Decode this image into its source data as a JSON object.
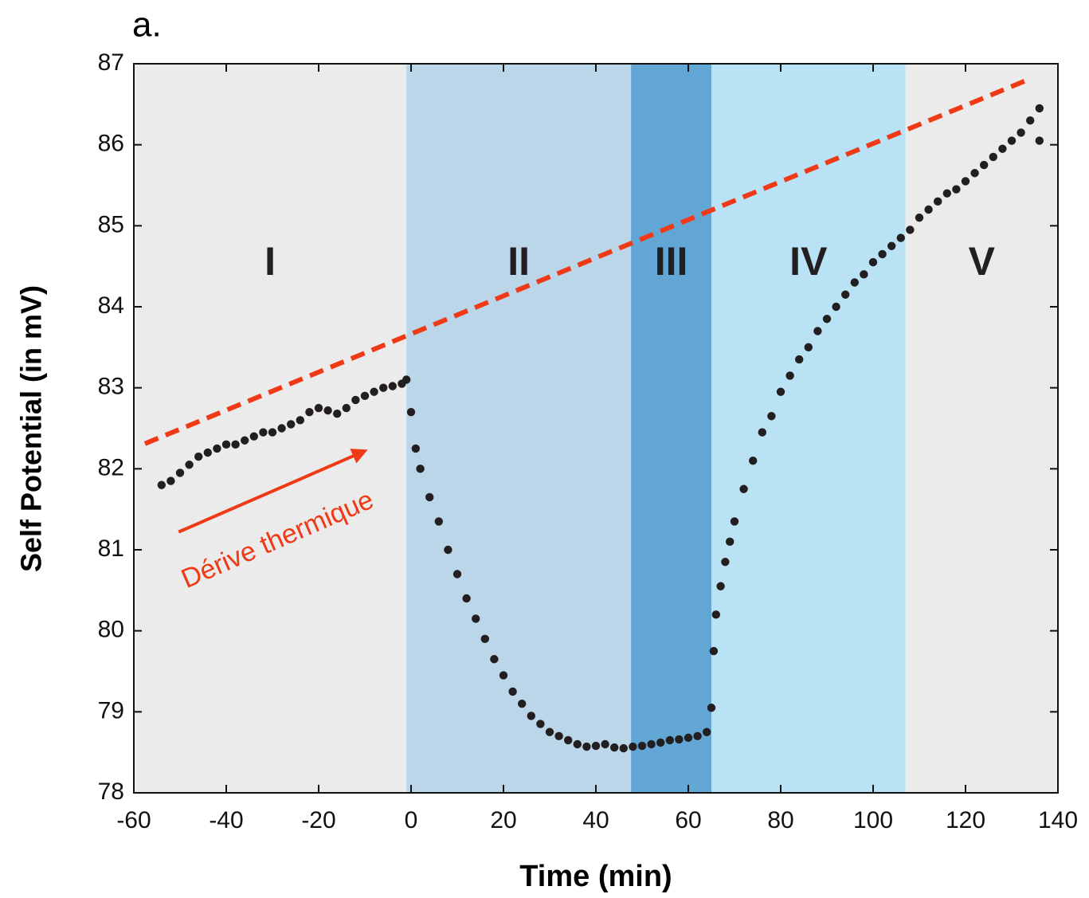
{
  "chart_data": {
    "type": "scatter",
    "panel_label": "a.",
    "x_label": "Time (min)",
    "y_label": "Self Potential (in mV)",
    "xlim": [
      -60,
      140
    ],
    "xticks": [
      -60,
      -40,
      -20,
      0,
      20,
      40,
      60,
      80,
      100,
      120,
      140
    ],
    "ylim": [
      78,
      87
    ],
    "yticks": [
      78,
      79,
      80,
      81,
      82,
      83,
      84,
      85,
      86,
      87
    ],
    "regions": [
      {
        "label": "I",
        "start": -60,
        "end": -1,
        "color": "#ebebeb"
      },
      {
        "label": "II",
        "start": -1,
        "end": 47.6,
        "color": "#bad6e8"
      },
      {
        "label": "III",
        "start": 47.6,
        "end": 65,
        "color": "#62a6d6"
      },
      {
        "label": "IV",
        "start": 65,
        "end": 107,
        "color": "#b9e2f4"
      },
      {
        "label": "V",
        "start": 107,
        "end": 140,
        "color": "#ebebeb"
      }
    ],
    "x": [
      -54,
      -52,
      -50,
      -48,
      -46,
      -44,
      -42,
      -40,
      -38,
      -36,
      -34,
      -32,
      -30,
      -28,
      -26,
      -24,
      -22,
      -20,
      -18,
      -16,
      -14,
      -12,
      -10,
      -8,
      -6,
      -4,
      -2,
      -1,
      0,
      1,
      2,
      4,
      6,
      8,
      10,
      12,
      14,
      16,
      18,
      20,
      22,
      24,
      26,
      28,
      30,
      32,
      34,
      36,
      38,
      40,
      42,
      44,
      46,
      48,
      50,
      52,
      54,
      56,
      58,
      60,
      62,
      64,
      65,
      65.5,
      66,
      67,
      68,
      69,
      70,
      72,
      74,
      76,
      78,
      80,
      82,
      84,
      86,
      88,
      90,
      92,
      94,
      96,
      98,
      100,
      102,
      104,
      106,
      108,
      110,
      112,
      114,
      116,
      118,
      120,
      122,
      124,
      126,
      128,
      130,
      132,
      134,
      136,
      136
    ],
    "series": [
      {
        "color": "#231f20",
        "values": [
          81.8,
          81.85,
          81.95,
          82.05,
          82.15,
          82.2,
          82.25,
          82.3,
          82.3,
          82.35,
          82.4,
          82.45,
          82.45,
          82.5,
          82.55,
          82.6,
          82.7,
          82.75,
          82.72,
          82.68,
          82.75,
          82.85,
          82.9,
          82.95,
          83.0,
          83.02,
          83.05,
          83.1,
          82.7,
          82.25,
          82.0,
          81.65,
          81.35,
          81.0,
          80.7,
          80.4,
          80.15,
          79.9,
          79.65,
          79.45,
          79.25,
          79.1,
          78.95,
          78.85,
          78.75,
          78.7,
          78.65,
          78.6,
          78.57,
          78.58,
          78.6,
          78.56,
          78.55,
          78.57,
          78.58,
          78.6,
          78.62,
          78.65,
          78.66,
          78.68,
          78.7,
          78.75,
          79.05,
          79.75,
          80.2,
          80.55,
          80.85,
          81.1,
          81.35,
          81.75,
          82.1,
          82.45,
          82.65,
          82.95,
          83.15,
          83.35,
          83.5,
          83.7,
          83.85,
          84.0,
          84.15,
          84.3,
          84.4,
          84.55,
          84.65,
          84.75,
          84.85,
          84.95,
          85.1,
          85.2,
          85.3,
          85.4,
          85.45,
          85.55,
          85.65,
          85.75,
          85.85,
          85.95,
          86.05,
          86.15,
          86.3,
          86.45,
          86.05
        ]
      }
    ],
    "trend_line": {
      "x": [
        -57.6,
        133.4
      ],
      "y": [
        82.31,
        86.8
      ],
      "color": "#f03a17"
    },
    "annotation": {
      "text": "Dérive thermique",
      "x": [
        -50.3,
        -10
      ],
      "y": [
        81.22,
        82.22
      ],
      "color": "#f03a17"
    }
  }
}
